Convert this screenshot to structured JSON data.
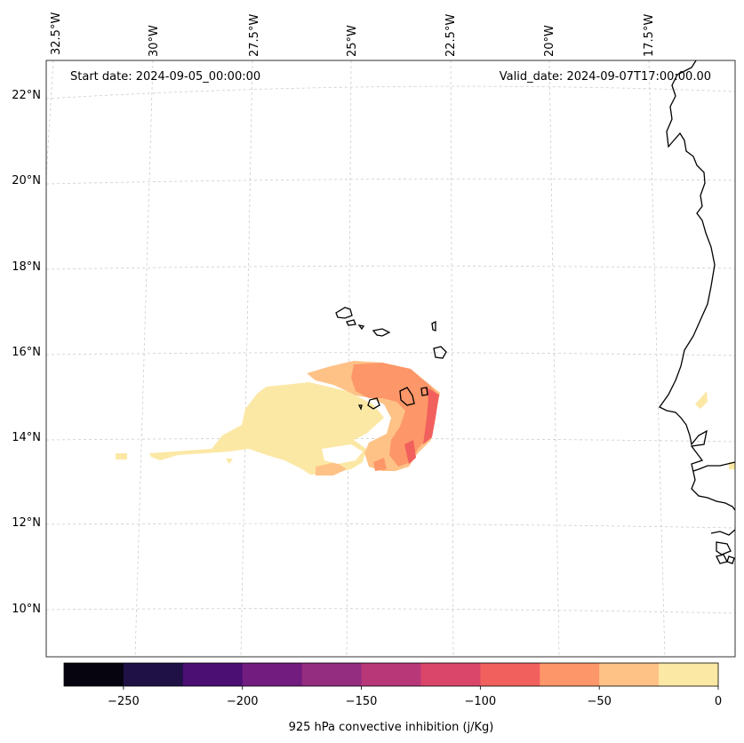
{
  "header": {
    "start_date": "Start date: 2024-09-05_00:00:00",
    "valid_date": "Valid_date: 2024-09-07T17:00:00.00"
  },
  "axes": {
    "lon_labels": [
      "32.5°W",
      "30°W",
      "27.5°W",
      "25°W",
      "22.5°W",
      "20°W",
      "17.5°W"
    ],
    "lat_labels": [
      "22°N",
      "20°N",
      "18°N",
      "16°N",
      "14°N",
      "12°N",
      "10°N"
    ]
  },
  "colorbar": {
    "label": "925 hPa convective inhibition (j/Kg)",
    "tick_labels": [
      "−250",
      "−200",
      "−150",
      "−100",
      "−50",
      "0"
    ],
    "tick_values": [
      -250,
      -200,
      -150,
      -100,
      -50,
      0
    ],
    "range": [
      -275,
      0
    ],
    "bins": [
      {
        "from": -275,
        "to": -250,
        "color": "#05040f"
      },
      {
        "from": -250,
        "to": -225,
        "color": "#1f1146"
      },
      {
        "from": -225,
        "to": -200,
        "color": "#4b0f74"
      },
      {
        "from": -200,
        "to": -175,
        "color": "#721c80"
      },
      {
        "from": -175,
        "to": -150,
        "color": "#942c80"
      },
      {
        "from": -150,
        "to": -125,
        "color": "#b73779"
      },
      {
        "from": -125,
        "to": -100,
        "color": "#da456a"
      },
      {
        "from": -100,
        "to": -75,
        "color": "#f1605d"
      },
      {
        "from": -75,
        "to": -50,
        "color": "#fd9668"
      },
      {
        "from": -50,
        "to": -25,
        "color": "#fec287"
      },
      {
        "from": -25,
        "to": 0,
        "color": "#fce8a5"
      }
    ]
  },
  "colors": {
    "field_0_25": "#fce8a5",
    "field_25_50": "#fec287",
    "field_50_75": "#fd9668",
    "field_75_100": "#f1605d",
    "gridline": "#cccccc",
    "coastline": "#000000"
  }
}
